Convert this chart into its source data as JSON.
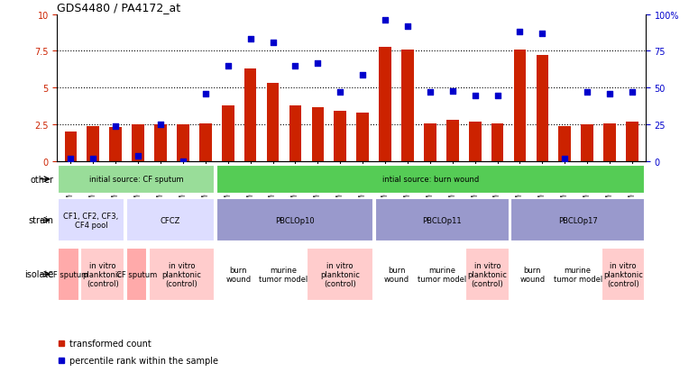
{
  "title": "GDS4480 / PA4172_at",
  "samples": [
    "GSM637589",
    "GSM637590",
    "GSM637579",
    "GSM637580",
    "GSM637591",
    "GSM637592",
    "GSM637581",
    "GSM637582",
    "GSM637583",
    "GSM637584",
    "GSM637593",
    "GSM637594",
    "GSM637573",
    "GSM637574",
    "GSM637585",
    "GSM637586",
    "GSM637595",
    "GSM637596",
    "GSM637575",
    "GSM637576",
    "GSM637587",
    "GSM637588",
    "GSM637597",
    "GSM637598",
    "GSM637577",
    "GSM637578"
  ],
  "red_values": [
    2.0,
    2.4,
    2.3,
    2.5,
    2.5,
    2.5,
    2.6,
    3.8,
    6.3,
    5.3,
    3.8,
    3.7,
    3.4,
    3.3,
    7.8,
    7.6,
    2.6,
    2.8,
    2.7,
    2.6,
    7.6,
    7.2,
    2.4,
    2.5,
    2.6,
    2.7
  ],
  "blue_values": [
    2,
    2,
    24,
    4,
    25,
    0,
    46,
    65,
    83,
    81,
    65,
    67,
    47,
    59,
    96,
    92,
    47,
    48,
    45,
    45,
    88,
    87,
    2,
    47,
    46,
    47
  ],
  "bar_color": "#cc2200",
  "dot_color": "#0000cc",
  "panel_groups_other": [
    {
      "label": "initial source: CF sputum",
      "start": 0,
      "end": 7,
      "color": "#99dd99"
    },
    {
      "label": "intial source: burn wound",
      "start": 7,
      "end": 26,
      "color": "#55cc55"
    }
  ],
  "panel_groups_strain": [
    {
      "label": "CF1, CF2, CF3,\nCF4 pool",
      "start": 0,
      "end": 3,
      "color": "#ddddff"
    },
    {
      "label": "CFCZ",
      "start": 3,
      "end": 7,
      "color": "#ddddff"
    },
    {
      "label": "PBCLOp10",
      "start": 7,
      "end": 14,
      "color": "#9999cc"
    },
    {
      "label": "PBCLOp11",
      "start": 14,
      "end": 20,
      "color": "#9999cc"
    },
    {
      "label": "PBCLOp17",
      "start": 20,
      "end": 26,
      "color": "#9999cc"
    }
  ],
  "panel_groups_isolate": [
    {
      "label": "CF sputum",
      "start": 0,
      "end": 1,
      "color": "#ffaaaa"
    },
    {
      "label": "in vitro\nplanktonic\n(control)",
      "start": 1,
      "end": 3,
      "color": "#ffcccc"
    },
    {
      "label": "CF sputum",
      "start": 3,
      "end": 4,
      "color": "#ffaaaa"
    },
    {
      "label": "in vitro\nplanktonic\n(control)",
      "start": 4,
      "end": 7,
      "color": "#ffcccc"
    },
    {
      "label": "burn\nwound",
      "start": 7,
      "end": 9,
      "color": "#ffffff"
    },
    {
      "label": "murine\ntumor model",
      "start": 9,
      "end": 11,
      "color": "#ffffff"
    },
    {
      "label": "in vitro\nplanktonic\n(control)",
      "start": 11,
      "end": 14,
      "color": "#ffcccc"
    },
    {
      "label": "burn\nwound",
      "start": 14,
      "end": 16,
      "color": "#ffffff"
    },
    {
      "label": "murine\ntumor model",
      "start": 16,
      "end": 18,
      "color": "#ffffff"
    },
    {
      "label": "in vitro\nplanktonic\n(control)",
      "start": 18,
      "end": 20,
      "color": "#ffcccc"
    },
    {
      "label": "burn\nwound",
      "start": 20,
      "end": 22,
      "color": "#ffffff"
    },
    {
      "label": "murine\ntumor model",
      "start": 22,
      "end": 24,
      "color": "#ffffff"
    },
    {
      "label": "in vitro\nplanktonic\n(control)",
      "start": 24,
      "end": 26,
      "color": "#ffcccc"
    }
  ],
  "legend_items": [
    {
      "marker": "s",
      "color": "#cc2200",
      "label": "transformed count"
    },
    {
      "marker": "s",
      "color": "#0000cc",
      "label": "percentile rank within the sample"
    }
  ]
}
